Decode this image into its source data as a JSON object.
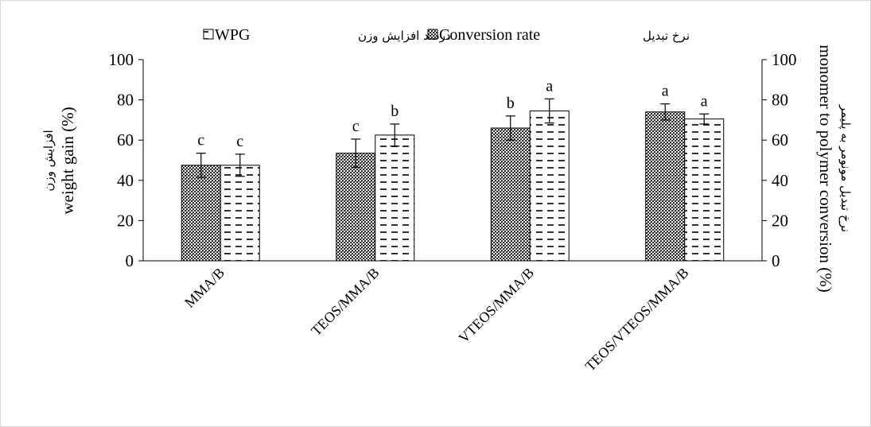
{
  "chart_data": {
    "type": "bar",
    "categories": [
      "MMA/B",
      "TEOS/MMA/B",
      "VTEOS/MMA/B",
      "TEOS/VTEOS/MMA/B"
    ],
    "series": [
      {
        "name": "Conversion rate",
        "name_fa": "نرخ تبدیل",
        "values": [
          47.5,
          53.5,
          66,
          74
        ],
        "errors": [
          6,
          7,
          6,
          4
        ],
        "letters": [
          "c",
          "c",
          "b",
          "a"
        ],
        "pattern": "dense-dots"
      },
      {
        "name": "WPG",
        "name_fa": "درصد افزایش وزن",
        "values": [
          47.5,
          62.5,
          74.5,
          70.5
        ],
        "errors": [
          5.5,
          5.5,
          6,
          2.5
        ],
        "letters": [
          "c",
          "b",
          "a",
          "a"
        ],
        "pattern": "dashes"
      }
    ],
    "ylim": [
      0,
      100
    ],
    "yticks": [
      0,
      20,
      40,
      60,
      80,
      100
    ],
    "y_left_label": "weight gain (%)",
    "y_left_label_fa": "افزایش وزن",
    "y_right_label": "monomer to polymer conversion (%)",
    "y_right_label_fa": "نرخ تبدیل مونومر به پلیمر",
    "legend_position": "top",
    "grid": false
  }
}
